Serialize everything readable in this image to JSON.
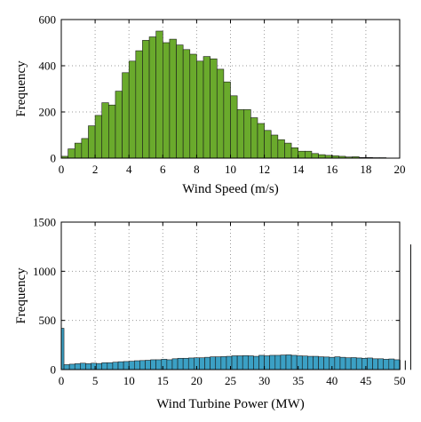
{
  "chart_data": [
    {
      "type": "bar",
      "xlabel": "Wind Speed (m/s)",
      "ylabel": "Frequency",
      "xlim": [
        0,
        20
      ],
      "ylim": [
        0,
        600
      ],
      "xticks": [
        0,
        2,
        4,
        6,
        8,
        10,
        12,
        14,
        16,
        18,
        20
      ],
      "yticks": [
        0,
        200,
        400,
        600
      ],
      "grid": true,
      "color": "#6aaa2c",
      "bin_width": 0.4,
      "bin_start": 0,
      "values": [
        8,
        40,
        65,
        85,
        140,
        185,
        240,
        230,
        290,
        370,
        420,
        465,
        510,
        525,
        550,
        500,
        515,
        490,
        470,
        450,
        420,
        440,
        430,
        385,
        330,
        270,
        210,
        210,
        175,
        150,
        120,
        100,
        80,
        65,
        45,
        30,
        30,
        20,
        15,
        12,
        10,
        8,
        5,
        6,
        3,
        3,
        2,
        2
      ]
    },
    {
      "type": "bar",
      "xlabel": "Wind Turbine Power (MW)",
      "ylabel": "Frequency",
      "xlim": [
        0,
        50
      ],
      "ylim": [
        0,
        1500
      ],
      "xticks": [
        0,
        5,
        10,
        15,
        20,
        25,
        30,
        35,
        40,
        45,
        50
      ],
      "yticks": [
        0,
        500,
        1000,
        1500
      ],
      "grid": true,
      "color": "#3ba0c4",
      "bin_width": 0.8,
      "bin_start": -0.4,
      "values": [
        420,
        50,
        55,
        60,
        65,
        60,
        65,
        62,
        70,
        70,
        75,
        80,
        82,
        85,
        90,
        92,
        95,
        100,
        100,
        105,
        100,
        110,
        115,
        115,
        118,
        120,
        120,
        125,
        130,
        130,
        132,
        135,
        140,
        140,
        142,
        140,
        135,
        145,
        140,
        145,
        145,
        148,
        150,
        145,
        140,
        138,
        135,
        135,
        130,
        128,
        125,
        130,
        125,
        120,
        122,
        118,
        115,
        118,
        110,
        110,
        105,
        108,
        100,
        95,
        90,
        1270
      ]
    }
  ]
}
